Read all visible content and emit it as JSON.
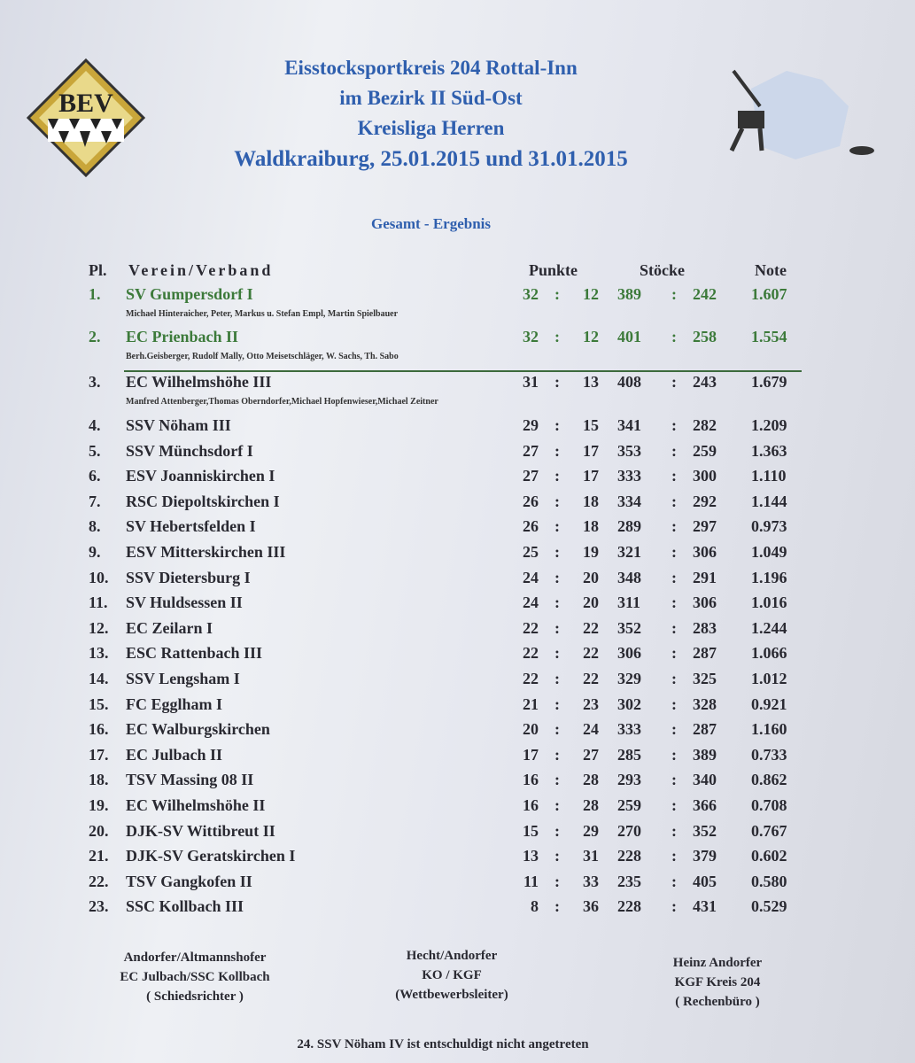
{
  "header": {
    "line1": "Eisstocksportkreis 204 Rottal-Inn",
    "line2": "im Bezirk II Süd-Ost",
    "line3": "Kreisliga Herren",
    "line4": "Waldkraiburg, 25.01.2015 und 31.01.2015",
    "subtitle": "Gesamt - Ergebnis",
    "logo_text": "BEV"
  },
  "columns": {
    "place": "Pl.",
    "club": "Verein/Verband",
    "points": "Punkte",
    "stocks": "Stöcke",
    "note": "Note"
  },
  "rows": [
    {
      "pl": "1.",
      "club": "SV Gumpersdorf I",
      "p1": "32",
      "p2": "12",
      "s1": "389",
      "s2": "242",
      "note": "1.607",
      "players": "Michael Hinteraicher, Peter, Markus u. Stefan Empl, Martin Spielbauer"
    },
    {
      "pl": "2.",
      "club": "EC Prienbach II",
      "p1": "32",
      "p2": "12",
      "s1": "401",
      "s2": "258",
      "note": "1.554",
      "players": "Berh.Geisberger, Rudolf Mally, Otto Meisetschläger, W. Sachs, Th. Sabo"
    },
    {
      "pl": "3.",
      "club": "EC Wilhelmshöhe III",
      "p1": "31",
      "p2": "13",
      "s1": "408",
      "s2": "243",
      "note": "1.679",
      "players": "Manfred Attenberger,Thomas Oberndorfer,Michael Hopfenwieser,Michael Zeitner"
    },
    {
      "pl": "4.",
      "club": "SSV Nöham III",
      "p1": "29",
      "p2": "15",
      "s1": "341",
      "s2": "282",
      "note": "1.209"
    },
    {
      "pl": "5.",
      "club": "SSV Münchsdorf I",
      "p1": "27",
      "p2": "17",
      "s1": "353",
      "s2": "259",
      "note": "1.363"
    },
    {
      "pl": "6.",
      "club": "ESV Joanniskirchen I",
      "p1": "27",
      "p2": "17",
      "s1": "333",
      "s2": "300",
      "note": "1.110"
    },
    {
      "pl": "7.",
      "club": "RSC Diepoltskirchen I",
      "p1": "26",
      "p2": "18",
      "s1": "334",
      "s2": "292",
      "note": "1.144"
    },
    {
      "pl": "8.",
      "club": "SV Hebertsfelden I",
      "p1": "26",
      "p2": "18",
      "s1": "289",
      "s2": "297",
      "note": "0.973"
    },
    {
      "pl": "9.",
      "club": "ESV Mitterskirchen III",
      "p1": "25",
      "p2": "19",
      "s1": "321",
      "s2": "306",
      "note": "1.049"
    },
    {
      "pl": "10.",
      "club": "SSV Dietersburg I",
      "p1": "24",
      "p2": "20",
      "s1": "348",
      "s2": "291",
      "note": "1.196"
    },
    {
      "pl": "11.",
      "club": "SV Huldsessen II",
      "p1": "24",
      "p2": "20",
      "s1": "311",
      "s2": "306",
      "note": "1.016"
    },
    {
      "pl": "12.",
      "club": "EC Zeilarn I",
      "p1": "22",
      "p2": "22",
      "s1": "352",
      "s2": "283",
      "note": "1.244"
    },
    {
      "pl": "13.",
      "club": "ESC Rattenbach III",
      "p1": "22",
      "p2": "22",
      "s1": "306",
      "s2": "287",
      "note": "1.066"
    },
    {
      "pl": "14.",
      "club": "SSV Lengsham I",
      "p1": "22",
      "p2": "22",
      "s1": "329",
      "s2": "325",
      "note": "1.012"
    },
    {
      "pl": "15.",
      "club": "FC Egglham I",
      "p1": "21",
      "p2": "23",
      "s1": "302",
      "s2": "328",
      "note": "0.921"
    },
    {
      "pl": "16.",
      "club": "EC Walburgskirchen",
      "p1": "20",
      "p2": "24",
      "s1": "333",
      "s2": "287",
      "note": "1.160"
    },
    {
      "pl": "17.",
      "club": "EC Julbach II",
      "p1": "17",
      "p2": "27",
      "s1": "285",
      "s2": "389",
      "note": "0.733"
    },
    {
      "pl": "18.",
      "club": "TSV Massing 08 II",
      "p1": "16",
      "p2": "28",
      "s1": "293",
      "s2": "340",
      "note": "0.862"
    },
    {
      "pl": "19.",
      "club": "EC Wilhelmshöhe II",
      "p1": "16",
      "p2": "28",
      "s1": "259",
      "s2": "366",
      "note": "0.708"
    },
    {
      "pl": "20.",
      "club": "DJK-SV Wittibreut II",
      "p1": "15",
      "p2": "29",
      "s1": "270",
      "s2": "352",
      "note": "0.767"
    },
    {
      "pl": "21.",
      "club": "DJK-SV Geratskirchen I",
      "p1": "13",
      "p2": "31",
      "s1": "228",
      "s2": "379",
      "note": "0.602"
    },
    {
      "pl": "22.",
      "club": "TSV Gangkofen II",
      "p1": "11",
      "p2": "33",
      "s1": "235",
      "s2": "405",
      "note": "0.580"
    },
    {
      "pl": "23.",
      "club": "SSC Kollbach III",
      "p1": "8",
      "p2": "36",
      "s1": "228",
      "s2": "431",
      "note": "0.529"
    }
  ],
  "sep": ":",
  "footer": {
    "left": [
      "Andorfer/Altmannshofer",
      "EC Julbach/SSC Kollbach",
      "( Schiedsrichter )"
    ],
    "center": [
      "Hecht/Andorfer",
      "KO / KGF",
      "(Wettbewerbsleiter)"
    ],
    "right": [
      "Heinz Andorfer",
      "KGF Kreis 204",
      "( Rechenbüro )"
    ],
    "note": "24. SSV Nöham IV ist entschuldigt nicht angetreten"
  },
  "colors": {
    "title": "#2f5fae",
    "top_rows": "#3c7a3a"
  }
}
